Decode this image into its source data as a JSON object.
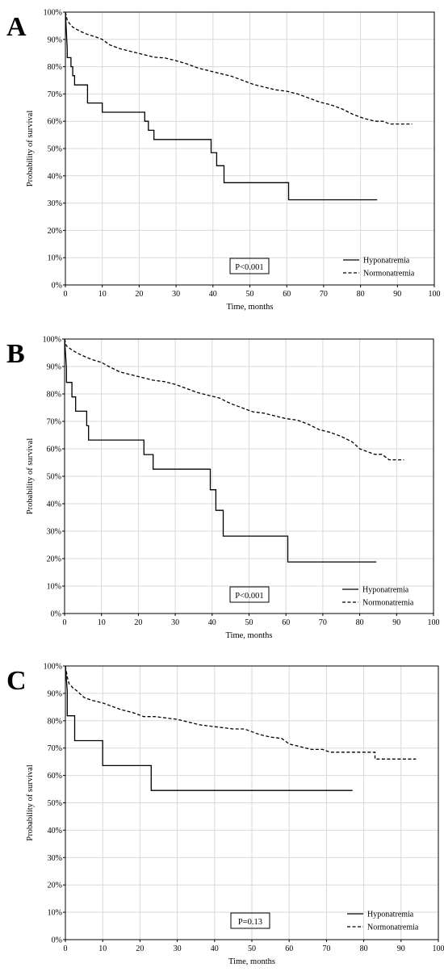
{
  "chart_data": [
    {
      "panel_label": "A",
      "type": "line",
      "xlabel": "Time, months",
      "ylabel": "Probability of survival",
      "xlim": [
        0,
        100
      ],
      "ylim": [
        0,
        100
      ],
      "x_ticks": [
        "0",
        "10",
        "20",
        "30",
        "40",
        "50",
        "60",
        "70",
        "80",
        "90",
        "100"
      ],
      "y_ticks": [
        "0%",
        "10%",
        "20%",
        "30%",
        "40%",
        "50%",
        "60%",
        "70%",
        "80%",
        "90%",
        "100%"
      ],
      "grid": true,
      "legend_position": "bottom-right",
      "annotation": "P<0.001",
      "series": [
        {
          "name": "Hyponatremia",
          "style": "solid",
          "color": "#000000",
          "x": [
            0,
            0.5,
            0.5,
            1.5,
            1.5,
            2,
            2,
            2.5,
            2.5,
            6,
            6,
            10,
            10,
            21.5,
            21.5,
            22.5,
            22.5,
            24,
            24,
            39.5,
            39.5,
            41,
            41,
            43,
            43,
            60.5,
            60.5,
            84.5
          ],
          "y": [
            100,
            86.7,
            83.3,
            83.3,
            80,
            80,
            76.7,
            76.7,
            73.3,
            73.3,
            66.7,
            66.7,
            63.3,
            63.3,
            60,
            60,
            56.7,
            56.7,
            53.3,
            53.3,
            48.5,
            48.5,
            43.7,
            43.7,
            37.5,
            37.5,
            31.2,
            31.2
          ]
        },
        {
          "name": "Normonatremia",
          "style": "dashed",
          "color": "#000000",
          "x": [
            0,
            0.5,
            1,
            2,
            4,
            6,
            8,
            10,
            12,
            15,
            18,
            21,
            24,
            27,
            30,
            33,
            36,
            39,
            42,
            45,
            48,
            51,
            54,
            57,
            60,
            63,
            66,
            69,
            72,
            75,
            78,
            81,
            84,
            86,
            88,
            91,
            94
          ],
          "y": [
            100,
            97,
            96,
            94.5,
            93,
            91.8,
            91,
            90,
            88,
            86.5,
            85.5,
            84.5,
            83.5,
            83.2,
            82.2,
            81,
            79.5,
            78.5,
            77.5,
            76.5,
            75,
            73.5,
            72.5,
            71.5,
            71,
            70,
            68.5,
            67,
            66,
            64.5,
            62.5,
            61,
            60,
            60,
            59,
            59,
            59
          ]
        }
      ]
    },
    {
      "panel_label": "B",
      "type": "line",
      "xlabel": "Time, months",
      "ylabel": "Probability of survival",
      "xlim": [
        0,
        100
      ],
      "ylim": [
        0,
        100
      ],
      "x_ticks": [
        "0",
        "10",
        "20",
        "30",
        "40",
        "50",
        "60",
        "70",
        "80",
        "90",
        "100"
      ],
      "y_ticks": [
        "0%",
        "10%",
        "20%",
        "30%",
        "40%",
        "50%",
        "60%",
        "70%",
        "80%",
        "90%",
        "100%"
      ],
      "grid": true,
      "legend_position": "bottom-right",
      "annotation": "P<0.001",
      "series": [
        {
          "name": "Hyponatremia",
          "style": "solid",
          "color": "#000000",
          "x": [
            0,
            0.5,
            0.5,
            2,
            2,
            3,
            3,
            6,
            6,
            6.5,
            6.5,
            21.5,
            21.5,
            24,
            24,
            39.5,
            39.5,
            41,
            41,
            43,
            43,
            60.5,
            60.5,
            84.5
          ],
          "y": [
            100,
            89.5,
            84.2,
            84.2,
            78.9,
            78.9,
            73.7,
            73.7,
            68.4,
            68.4,
            63.2,
            63.2,
            57.9,
            57.9,
            52.6,
            52.6,
            45.1,
            45.1,
            37.6,
            37.6,
            28.2,
            28.2,
            18.8,
            18.8
          ]
        },
        {
          "name": "Normonatremia",
          "style": "dashed",
          "color": "#000000",
          "x": [
            0,
            0.5,
            1,
            2,
            4,
            6,
            8,
            10,
            12,
            15,
            18,
            21,
            24,
            27,
            30,
            33,
            36,
            39,
            42,
            45,
            48,
            51,
            54,
            57,
            60,
            63,
            66,
            69,
            72,
            75,
            78,
            80,
            84,
            86,
            88,
            92
          ],
          "y": [
            100,
            97.5,
            97,
            96,
            94.5,
            93.3,
            92.3,
            91.5,
            90,
            88,
            87,
            86,
            85,
            84.5,
            83.5,
            82,
            80.5,
            79.5,
            78.5,
            76.5,
            75,
            73.5,
            73,
            72,
            71,
            70.5,
            69,
            67,
            66,
            64.5,
            62.5,
            60,
            58,
            58,
            56,
            56
          ]
        }
      ]
    },
    {
      "panel_label": "C",
      "type": "line",
      "xlabel": "Time, months",
      "ylabel": "Probability of survival",
      "xlim": [
        0,
        100
      ],
      "ylim": [
        0,
        100
      ],
      "x_ticks": [
        "0",
        "10",
        "20",
        "30",
        "40",
        "50",
        "60",
        "70",
        "80",
        "90",
        "100"
      ],
      "y_ticks": [
        "0%",
        "10%",
        "20%",
        "30%",
        "40%",
        "50%",
        "60%",
        "70%",
        "80%",
        "90%",
        "100%"
      ],
      "grid": true,
      "legend_position": "bottom-right",
      "annotation": "P=0.13",
      "series": [
        {
          "name": "Hyponatremia",
          "style": "solid",
          "color": "#000000",
          "x": [
            0,
            0.5,
            0.5,
            2.5,
            2.5,
            10,
            10,
            23,
            23,
            77
          ],
          "y": [
            100,
            90.9,
            81.8,
            81.8,
            72.7,
            72.7,
            63.6,
            63.6,
            54.5,
            54.5
          ]
        },
        {
          "name": "Normonatremia",
          "style": "dashed",
          "color": "#000000",
          "x": [
            0,
            0.5,
            1,
            2,
            3,
            5,
            7,
            10,
            12,
            15,
            18,
            21,
            24,
            27,
            30,
            33,
            36,
            39,
            42,
            45,
            48,
            51,
            52,
            55,
            58,
            60,
            63,
            66,
            69,
            71,
            75,
            80,
            83,
            83,
            88,
            94
          ],
          "y": [
            100,
            96,
            93.5,
            92,
            91,
            88.5,
            87.5,
            86.5,
            85.5,
            84,
            83,
            81.5,
            81.5,
            81,
            80.5,
            79.5,
            78.5,
            78,
            77.5,
            77,
            77,
            75.5,
            75,
            74,
            73.5,
            71.5,
            70.5,
            69.5,
            69.5,
            68.5,
            68.5,
            68.5,
            68.5,
            66,
            66,
            66
          ]
        }
      ]
    }
  ]
}
